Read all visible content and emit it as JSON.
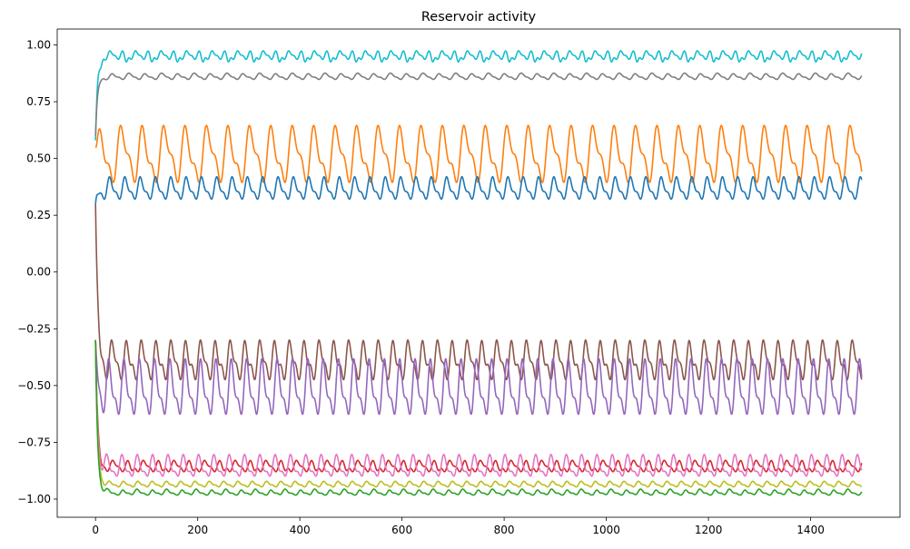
{
  "chart_data": {
    "type": "line",
    "title": "Reservoir activity",
    "xlabel": "",
    "ylabel": "",
    "xlim": [
      -75,
      1575
    ],
    "ylim": [
      -1.08,
      1.07
    ],
    "x_ticks": [
      0,
      200,
      400,
      600,
      800,
      1000,
      1200,
      1400
    ],
    "x_tick_labels": [
      "0",
      "200",
      "400",
      "600",
      "800",
      "1000",
      "1200",
      "1400"
    ],
    "y_ticks": [
      1.0,
      0.75,
      0.5,
      0.25,
      0.0,
      -0.25,
      -0.5,
      -0.75,
      -1.0
    ],
    "y_tick_labels": [
      "1.00",
      "0.75",
      "0.50",
      "0.25",
      "0.00",
      "−0.25",
      "−0.50",
      "−0.75",
      "−1.00"
    ],
    "grid": false,
    "legend": "none",
    "x_range": [
      0,
      1500
    ],
    "series": [
      {
        "color": "#17becf",
        "start": 0.58,
        "base": 0.955,
        "amp": 0.015,
        "dip": 0.03,
        "period": 25,
        "phase": 0.3
      },
      {
        "color": "#7f7f7f",
        "start": 0.6,
        "base": 0.86,
        "amp": 0.01,
        "dip": -0.005,
        "period": 32,
        "phase": 1.1
      },
      {
        "color": "#ff7f0e",
        "start": 0.55,
        "base": 0.52,
        "amp": 0.1,
        "dip": 0.04,
        "period": 42,
        "phase": 0.0
      },
      {
        "color": "#1f77b4",
        "start": 0.3,
        "base": 0.365,
        "amp": 0.04,
        "dip": 0.0,
        "period": 30,
        "phase": 1.8
      },
      {
        "color": "#8c564b",
        "start": 0.3,
        "base": -0.39,
        "amp": 0.07,
        "dip": 0.02,
        "period": 29,
        "phase": 0.6
      },
      {
        "color": "#9467bd",
        "start": -0.3,
        "base": -0.52,
        "amp": 0.1,
        "dip": 0.0,
        "period": 30,
        "phase": 2.2
      },
      {
        "color": "#d62728",
        "start": -0.3,
        "base": -0.855,
        "amp": 0.02,
        "dip": 0.02,
        "period": 30,
        "phase": 0.4
      },
      {
        "color": "#e377c2",
        "start": -0.3,
        "base": -0.86,
        "amp": 0.04,
        "dip": 0.0,
        "period": 30,
        "phase": 3.1
      },
      {
        "color": "#bcbd22",
        "start": -0.3,
        "base": -0.935,
        "amp": 0.01,
        "dip": 0.0,
        "period": 28,
        "phase": 1.5
      },
      {
        "color": "#2ca02c",
        "start": -0.3,
        "base": -0.97,
        "amp": 0.01,
        "dip": 0.01,
        "period": 29,
        "phase": 2.6
      }
    ]
  }
}
